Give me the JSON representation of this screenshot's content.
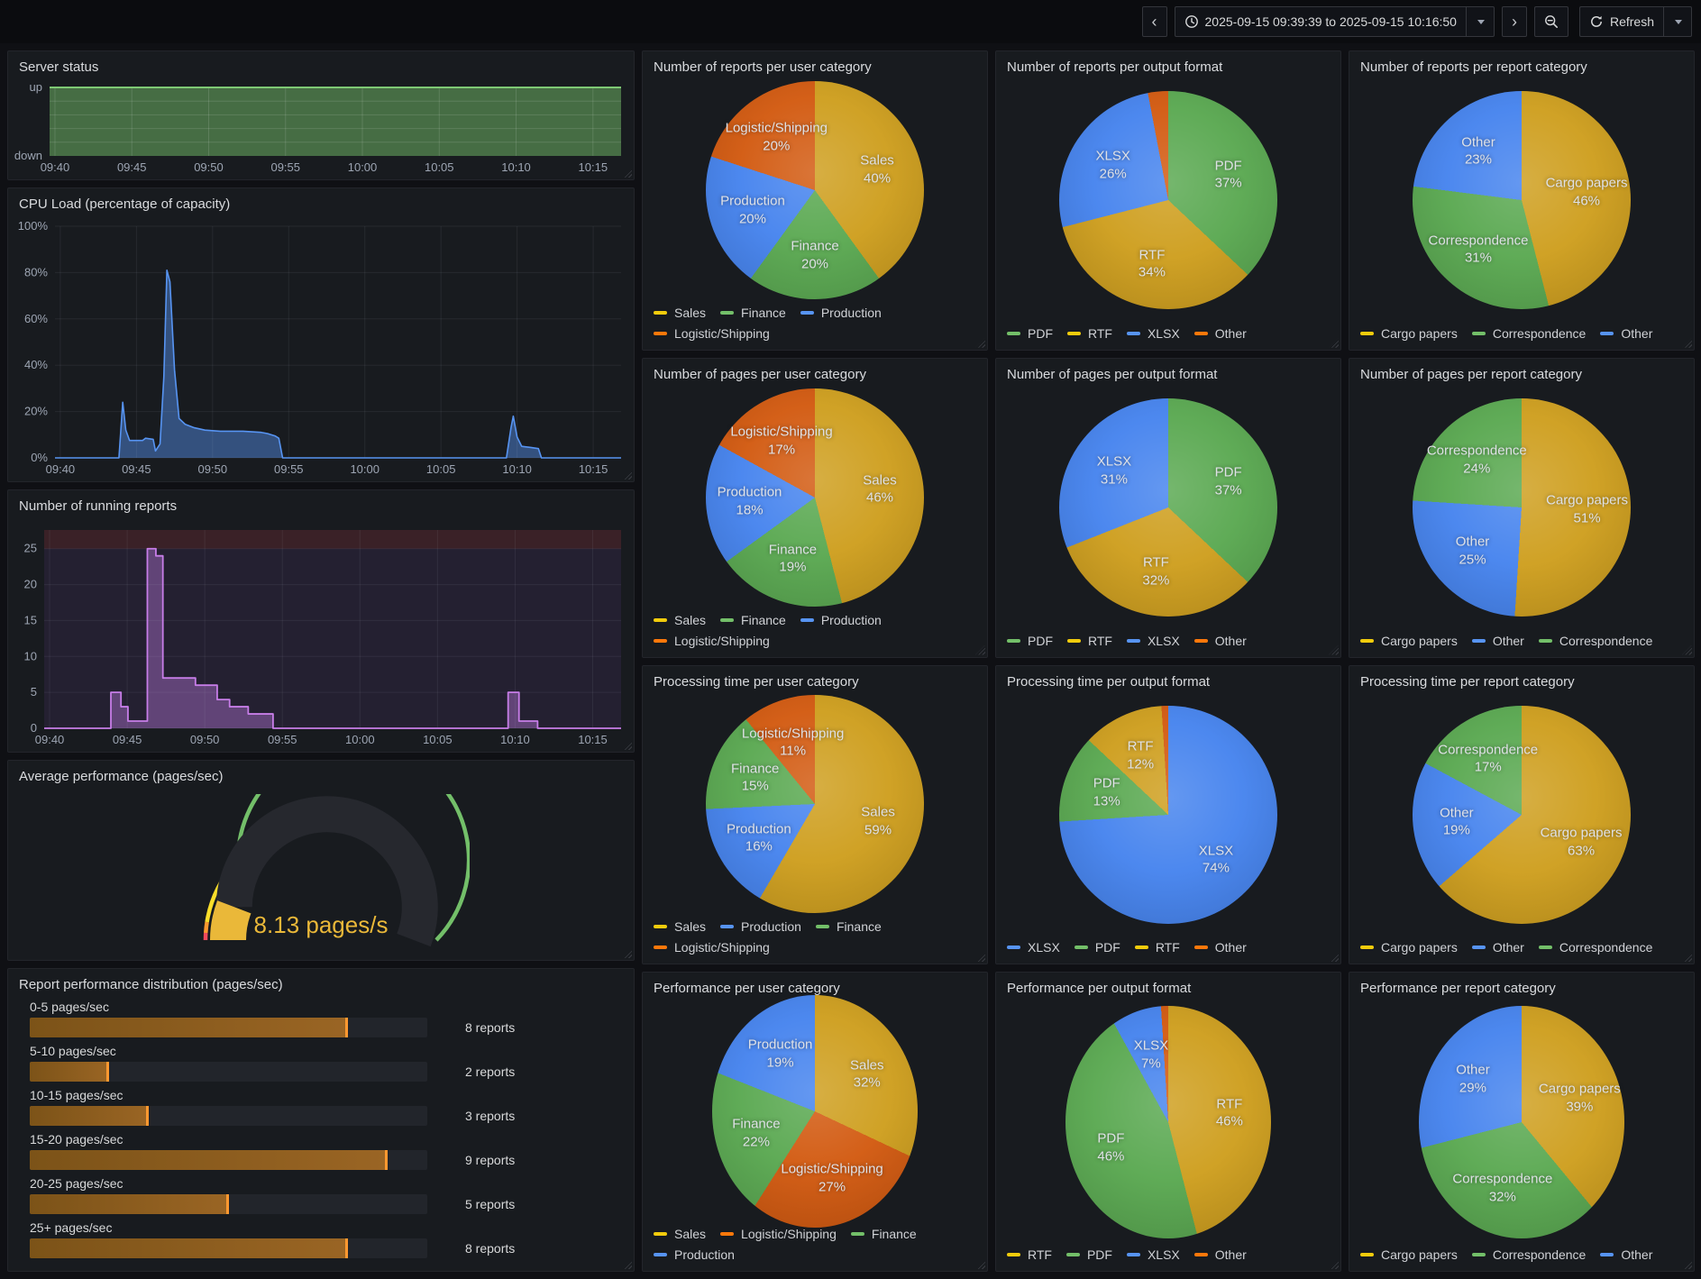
{
  "toolbar": {
    "time_range": "2025-09-15 09:39:39 to 2025-09-15 10:16:50",
    "refresh_label": "Refresh"
  },
  "palette": {
    "yellow": {
      "slice": "#CE9E1D",
      "legend": "#F2CC0C"
    },
    "green": {
      "slice": "#59A850",
      "legend": "#73BF69"
    },
    "blue": {
      "slice": "#4583EE",
      "legend": "#5794F2"
    },
    "orange": {
      "slice": "#D2590F",
      "legend": "#FF780A"
    }
  },
  "chart_data": [
    {
      "type": "area",
      "title": "Server status",
      "x_domain": [
        39.65,
        76.83
      ],
      "x_tick_minutes": [
        40,
        45,
        50,
        55,
        60,
        65,
        70,
        75
      ],
      "x_tick_labels": [
        "09:40",
        "09:45",
        "09:50",
        "09:55",
        "10:00",
        "10:05",
        "10:10",
        "10:15"
      ],
      "ylim": [
        0,
        1
      ],
      "y_grid": [
        0.2,
        0.4,
        0.6,
        0.8
      ],
      "y_ticks": [
        {
          "v": 1,
          "label": "up"
        },
        {
          "v": 0,
          "label": "down"
        }
      ],
      "series": [
        {
          "name": "server status",
          "color": "#7EC974",
          "fill": "rgba(115,191,105,0.5)",
          "points": [
            [
              39.65,
              1
            ],
            [
              76.83,
              1
            ]
          ]
        }
      ]
    },
    {
      "type": "area",
      "title": "CPU Load (percentage of capacity)",
      "x_domain": [
        39.65,
        76.83
      ],
      "x_tick_minutes": [
        40,
        45,
        50,
        55,
        60,
        65,
        70,
        75
      ],
      "x_tick_labels": [
        "09:40",
        "09:45",
        "09:50",
        "09:55",
        "10:00",
        "10:05",
        "10:10",
        "10:15"
      ],
      "ylim": [
        0,
        100
      ],
      "y_grid": [
        0,
        20,
        40,
        60,
        80,
        100
      ],
      "y_ticks": [
        {
          "v": 0,
          "label": "0%"
        },
        {
          "v": 20,
          "label": "20%"
        },
        {
          "v": 40,
          "label": "40%"
        },
        {
          "v": 60,
          "label": "60%"
        },
        {
          "v": 80,
          "label": "80%"
        },
        {
          "v": 100,
          "label": "100%"
        }
      ],
      "series": [
        {
          "name": "cpu load",
          "color": "#5794F2",
          "fill": "rgba(87,148,242,0.45)",
          "points": [
            [
              39.65,
              0
            ],
            [
              43.85,
              0
            ],
            [
              44.1,
              24
            ],
            [
              44.3,
              12
            ],
            [
              44.55,
              7.5
            ],
            [
              45.4,
              7.5
            ],
            [
              45.6,
              8.5
            ],
            [
              46.1,
              8
            ],
            [
              46.25,
              3
            ],
            [
              46.55,
              6
            ],
            [
              46.8,
              35
            ],
            [
              47.0,
              81
            ],
            [
              47.2,
              76
            ],
            [
              47.5,
              38
            ],
            [
              47.8,
              17
            ],
            [
              48.2,
              14.5
            ],
            [
              48.8,
              13
            ],
            [
              49.5,
              12
            ],
            [
              50.5,
              11.5
            ],
            [
              52.0,
              11.5
            ],
            [
              53.2,
              11
            ],
            [
              53.6,
              10.5
            ],
            [
              54.1,
              9.5
            ],
            [
              54.35,
              8.5
            ],
            [
              54.6,
              0
            ],
            [
              69.3,
              0
            ],
            [
              69.6,
              13
            ],
            [
              69.75,
              18
            ],
            [
              70.0,
              9
            ],
            [
              70.3,
              5
            ],
            [
              70.9,
              4.5
            ],
            [
              71.4,
              4
            ],
            [
              71.6,
              0
            ],
            [
              76.83,
              0
            ]
          ]
        }
      ]
    },
    {
      "type": "step-area",
      "title": "Number of running reports",
      "x_domain": [
        39.65,
        76.83
      ],
      "x_tick_minutes": [
        40,
        45,
        50,
        55,
        60,
        65,
        70,
        75
      ],
      "x_tick_labels": [
        "09:40",
        "09:45",
        "09:50",
        "09:55",
        "10:00",
        "10:05",
        "10:10",
        "10:15"
      ],
      "ylim": [
        0,
        27.6
      ],
      "y_grid": [
        0,
        5,
        10,
        15,
        20,
        25
      ],
      "y_ticks": [
        {
          "v": 0,
          "label": "0"
        },
        {
          "v": 5,
          "label": "5"
        },
        {
          "v": 10,
          "label": "10"
        },
        {
          "v": 15,
          "label": "15"
        },
        {
          "v": 20,
          "label": "20"
        },
        {
          "v": 25,
          "label": "25"
        }
      ],
      "plot_bg": "#242031",
      "threshold": {
        "from": 25,
        "color": "#3A2127"
      },
      "series": [
        {
          "name": "running reports",
          "color": "#C77DE8",
          "fill": "rgba(184,119,217,0.42)",
          "points": [
            [
              39.65,
              0
            ],
            [
              43.95,
              5
            ],
            [
              44.6,
              3
            ],
            [
              45.05,
              1
            ],
            [
              46.3,
              25
            ],
            [
              46.85,
              24
            ],
            [
              47.3,
              7
            ],
            [
              49.4,
              6
            ],
            [
              50.8,
              4
            ],
            [
              51.6,
              3
            ],
            [
              52.8,
              2
            ],
            [
              54.4,
              0
            ],
            [
              69.55,
              5
            ],
            [
              70.25,
              1
            ],
            [
              71.45,
              0
            ]
          ]
        }
      ]
    },
    {
      "type": "gauge",
      "title": "Average performance (pages/sec)",
      "value": 8.13,
      "display": "8.13 pages/s",
      "min": 0,
      "max": 70,
      "value_color": "#EAB839",
      "thresholds": [
        {
          "from_frac": 0,
          "color": "#F2495C"
        },
        {
          "from_frac": 0.02,
          "color": "#FF9830"
        },
        {
          "from_frac": 0.05,
          "color": "#FADE2A"
        },
        {
          "from_frac": 0.245,
          "color": "#73BF69"
        }
      ]
    },
    {
      "type": "bar",
      "title": "Report performance distribution (pages/sec)",
      "categories": [
        "0-5 pages/sec",
        "5-10 pages/sec",
        "10-15 pages/sec",
        "15-20 pages/sec",
        "20-25 pages/sec",
        "25+ pages/sec"
      ],
      "values": [
        8,
        2,
        3,
        9,
        5,
        8
      ],
      "max": 10,
      "value_labels": [
        "8 reports",
        "2 reports",
        "3 reports",
        "9 reports",
        "5 reports",
        "8 reports"
      ]
    },
    {
      "type": "pie",
      "title": "Number of reports per user category",
      "slices": [
        {
          "label": "Sales",
          "pct": 40,
          "color": "yellow",
          "show_label": true
        },
        {
          "label": "Finance",
          "pct": 20,
          "color": "green",
          "show_label": true
        },
        {
          "label": "Production",
          "pct": 20,
          "color": "blue",
          "show_label": true
        },
        {
          "label": "Logistic/Shipping",
          "pct": 20,
          "color": "orange",
          "show_label": true
        }
      ]
    },
    {
      "type": "pie",
      "title": "Number of reports per output format",
      "slices": [
        {
          "label": "PDF",
          "pct": 37,
          "color": "green",
          "show_label": true
        },
        {
          "label": "RTF",
          "pct": 34,
          "color": "yellow",
          "show_label": true
        },
        {
          "label": "XLSX",
          "pct": 26,
          "color": "blue",
          "show_label": true
        },
        {
          "label": "Other",
          "pct": 3,
          "color": "orange",
          "show_label": false
        }
      ]
    },
    {
      "type": "pie",
      "title": "Number of reports per report category",
      "slices": [
        {
          "label": "Cargo papers",
          "pct": 46,
          "color": "yellow",
          "show_label": true
        },
        {
          "label": "Correspondence",
          "pct": 31,
          "color": "green",
          "show_label": true
        },
        {
          "label": "Other",
          "pct": 23,
          "color": "blue",
          "show_label": true
        }
      ]
    },
    {
      "type": "pie",
      "title": "Number of pages per user category",
      "slices": [
        {
          "label": "Sales",
          "pct": 46,
          "color": "yellow",
          "show_label": true
        },
        {
          "label": "Finance",
          "pct": 19,
          "color": "green",
          "show_label": true
        },
        {
          "label": "Production",
          "pct": 18,
          "color": "blue",
          "show_label": true
        },
        {
          "label": "Logistic/Shipping",
          "pct": 17,
          "color": "orange",
          "show_label": true
        }
      ]
    },
    {
      "type": "pie",
      "title": "Number of pages per output format",
      "slices": [
        {
          "label": "PDF",
          "pct": 37,
          "color": "green",
          "show_label": true
        },
        {
          "label": "RTF",
          "pct": 32,
          "color": "yellow",
          "show_label": true
        },
        {
          "label": "XLSX",
          "pct": 31,
          "color": "blue",
          "show_label": true
        },
        {
          "label": "Other",
          "pct": 0,
          "color": "orange",
          "show_label": false
        }
      ]
    },
    {
      "type": "pie",
      "title": "Number of pages per report category",
      "slices": [
        {
          "label": "Cargo papers",
          "pct": 51,
          "color": "yellow",
          "show_label": true
        },
        {
          "label": "Other",
          "pct": 25,
          "color": "blue",
          "show_label": true
        },
        {
          "label": "Correspondence",
          "pct": 24,
          "color": "green",
          "show_label": true
        }
      ]
    },
    {
      "type": "pie",
      "title": "Processing time per user category",
      "slices": [
        {
          "label": "Sales",
          "pct": 59,
          "color": "yellow",
          "show_label": true
        },
        {
          "label": "Production",
          "pct": 16,
          "color": "blue",
          "show_label": true
        },
        {
          "label": "Finance",
          "pct": 15,
          "color": "green",
          "show_label": true
        },
        {
          "label": "Logistic/Shipping",
          "pct": 11,
          "color": "orange",
          "show_label": true
        }
      ]
    },
    {
      "type": "pie",
      "title": "Processing time per output format",
      "slices": [
        {
          "label": "XLSX",
          "pct": 74,
          "color": "blue",
          "show_label": true
        },
        {
          "label": "PDF",
          "pct": 13,
          "color": "green",
          "show_label": true
        },
        {
          "label": "RTF",
          "pct": 12,
          "color": "yellow",
          "show_label": true
        },
        {
          "label": "Other",
          "pct": 1,
          "color": "orange",
          "show_label": false
        }
      ]
    },
    {
      "type": "pie",
      "title": "Processing time per report category",
      "slices": [
        {
          "label": "Cargo papers",
          "pct": 63,
          "color": "yellow",
          "show_label": true
        },
        {
          "label": "Other",
          "pct": 19,
          "color": "blue",
          "show_label": true
        },
        {
          "label": "Correspondence",
          "pct": 17,
          "color": "green",
          "show_label": true
        }
      ]
    },
    {
      "type": "pie",
      "title": "Performance per user category",
      "slices": [
        {
          "label": "Sales",
          "pct": 32,
          "color": "yellow",
          "show_label": true
        },
        {
          "label": "Logistic/Shipping",
          "pct": 27,
          "color": "orange",
          "show_label": true
        },
        {
          "label": "Finance",
          "pct": 22,
          "color": "green",
          "show_label": true
        },
        {
          "label": "Production",
          "pct": 19,
          "color": "blue",
          "show_label": true
        }
      ]
    },
    {
      "type": "pie",
      "title": "Performance per output format",
      "slices": [
        {
          "label": "RTF",
          "pct": 46,
          "color": "yellow",
          "show_label": true
        },
        {
          "label": "PDF",
          "pct": 46,
          "color": "green",
          "show_label": true
        },
        {
          "label": "XLSX",
          "pct": 7,
          "color": "blue",
          "show_label": true
        },
        {
          "label": "Other",
          "pct": 1,
          "color": "orange",
          "show_label": false
        }
      ]
    },
    {
      "type": "pie",
      "title": "Performance per report category",
      "slices": [
        {
          "label": "Cargo papers",
          "pct": 39,
          "color": "yellow",
          "show_label": true
        },
        {
          "label": "Correspondence",
          "pct": 32,
          "color": "green",
          "show_label": true
        },
        {
          "label": "Other",
          "pct": 29,
          "color": "blue",
          "show_label": true
        }
      ]
    }
  ]
}
